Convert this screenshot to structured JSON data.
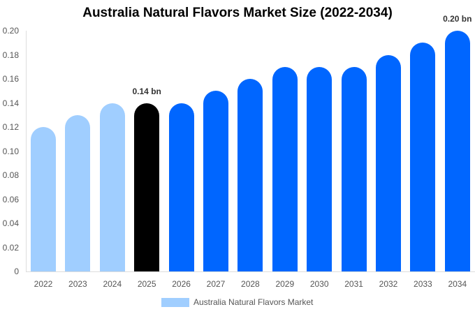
{
  "chart_data": {
    "type": "bar",
    "title": "Australia Natural Flavors Market Size (2022-2034)",
    "xlabel": "",
    "ylabel": "",
    "ylim": [
      0,
      0.2
    ],
    "yticks": [
      "0",
      "0.02",
      "0.04",
      "0.06",
      "0.08",
      "0.10",
      "0.12",
      "0.14",
      "0.16",
      "0.18",
      "0.20"
    ],
    "categories": [
      "2022",
      "2023",
      "2024",
      "2025",
      "2026",
      "2027",
      "2028",
      "2029",
      "2030",
      "2031",
      "2032",
      "2033",
      "2034"
    ],
    "series": [
      {
        "name": "Australia Natural Flavors Market",
        "values": [
          0.12,
          0.13,
          0.14,
          0.14,
          0.14,
          0.15,
          0.16,
          0.17,
          0.17,
          0.17,
          0.18,
          0.19,
          0.2
        ]
      }
    ],
    "bar_colors": [
      "#a0ceff",
      "#a0ceff",
      "#a0ceff",
      "#000000",
      "#0066ff",
      "#0066ff",
      "#0066ff",
      "#0066ff",
      "#0066ff",
      "#0066ff",
      "#0066ff",
      "#0066ff",
      "#0066ff"
    ],
    "annotations": [
      {
        "category": "2025",
        "text": "0.14 bn"
      },
      {
        "category": "2034",
        "text": "0.20 bn"
      }
    ],
    "legend": {
      "label": "Australia Natural Flavors Market",
      "color": "#a0ceff",
      "position": "bottom"
    },
    "grid": false
  }
}
